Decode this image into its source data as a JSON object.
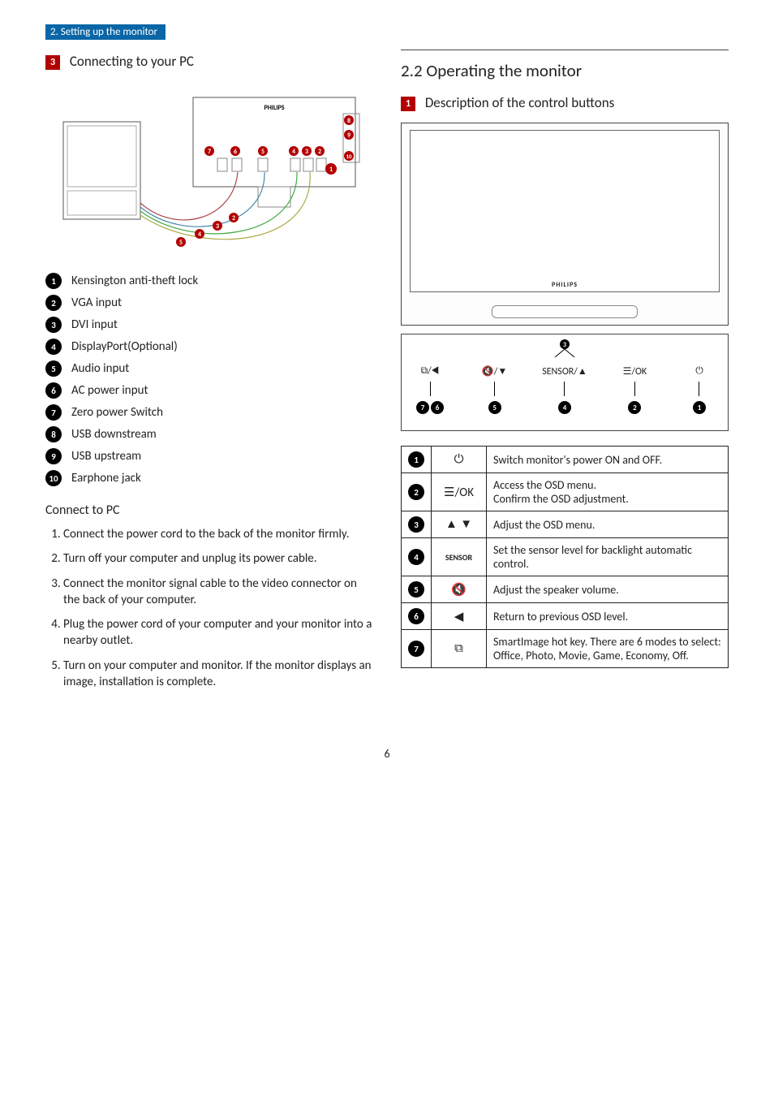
{
  "breadcrumb": "2. Setting up the monitor",
  "left": {
    "section_label": "3",
    "section_title": "Connecting to your PC",
    "diagram_brand": "PHILIPS",
    "legend": [
      {
        "n": "1",
        "text": "Kensington anti-theft lock"
      },
      {
        "n": "2",
        "text": "VGA input"
      },
      {
        "n": "3",
        "text": "DVI input"
      },
      {
        "n": "4",
        "text": "DisplayPort(Optional)"
      },
      {
        "n": "5",
        "text": "Audio input"
      },
      {
        "n": "6",
        "text": "AC power input"
      },
      {
        "n": "7",
        "text": "Zero power Switch"
      },
      {
        "n": "8",
        "text": "USB downstream"
      },
      {
        "n": "9",
        "text": "USB upstream"
      },
      {
        "n": "10",
        "text": "Earphone jack"
      }
    ],
    "connect_heading": "Connect to PC",
    "steps": [
      "Connect the power cord to the back of the monitor firmly.",
      "Turn off your computer and unplug its power cable.",
      "Connect the monitor signal cable to the video connector on the back of your computer.",
      "Plug the power cord of your computer and your monitor into a nearby outlet.",
      "Turn on your computer and monitor. If the monitor displays an image, installation is complete."
    ]
  },
  "right": {
    "heading": "2.2  Operating the monitor",
    "section_label": "1",
    "section_title": "Description of the control buttons",
    "brand": "PHILIPS",
    "controls": {
      "sensor_badge": "3",
      "items": [
        {
          "sym": "⧉/◀",
          "nums": [
            "7",
            "6"
          ]
        },
        {
          "sym": "🔇/▼",
          "nums": [
            "5"
          ]
        },
        {
          "sym": "SENSOR/▲",
          "nums": [
            "4"
          ]
        },
        {
          "sym": "☰/OK",
          "nums": [
            "2"
          ]
        },
        {
          "sym": "⏻",
          "nums": [
            "1"
          ]
        }
      ]
    },
    "table": [
      {
        "n": "1",
        "icon": "⏻",
        "desc": "Switch monitor's power ON and OFF."
      },
      {
        "n": "2",
        "icon": "☰/OK",
        "desc": "Access the OSD menu.\nConfirm the OSD adjustment."
      },
      {
        "n": "3",
        "icon": "▲ ▼",
        "desc": "Adjust the OSD menu."
      },
      {
        "n": "4",
        "icon": "SENSOR",
        "desc": "Set the sensor level for backlight automatic control."
      },
      {
        "n": "5",
        "icon": "🔇",
        "desc": "Adjust the speaker volume."
      },
      {
        "n": "6",
        "icon": "◀",
        "desc": "Return to previous OSD level."
      },
      {
        "n": "7",
        "icon": "⧉",
        "desc": "SmartImage hot key. There are 6 modes to select: Office, Photo, Movie, Game, Economy, Off."
      }
    ]
  },
  "page_number": "6",
  "colors": {
    "accent_blue": "#0a66a6",
    "accent_red": "#b30000",
    "badge_bg": "#000000"
  }
}
